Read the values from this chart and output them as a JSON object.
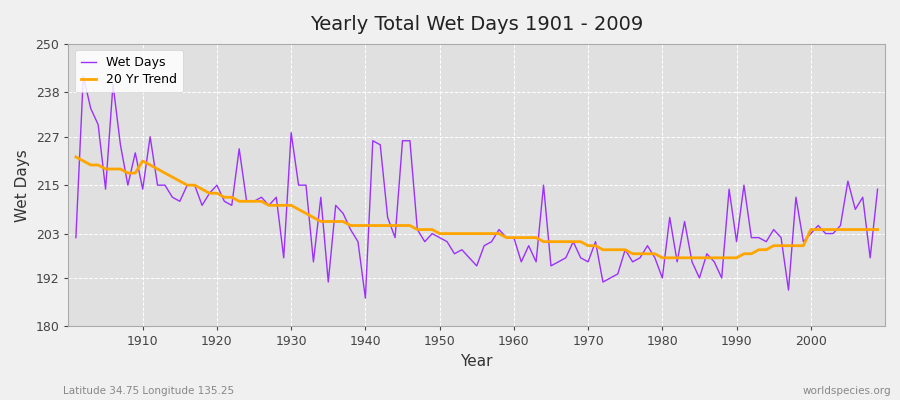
{
  "title": "Yearly Total Wet Days 1901 - 2009",
  "xlabel": "Year",
  "ylabel": "Wet Days",
  "subtitle_left": "Latitude 34.75 Longitude 135.25",
  "subtitle_right": "worldspecies.org",
  "legend_wet": "Wet Days",
  "legend_trend": "20 Yr Trend",
  "wet_color": "#9B30FF",
  "trend_color": "#FFA500",
  "bg_color": "#F0F0F0",
  "plot_bg_color": "#E0E0E0",
  "ylim": [
    180,
    250
  ],
  "yticks": [
    180,
    192,
    203,
    215,
    227,
    238,
    250
  ],
  "xticks": [
    1910,
    1920,
    1930,
    1940,
    1950,
    1960,
    1970,
    1980,
    1990,
    2000
  ],
  "years": [
    1901,
    1902,
    1903,
    1904,
    1905,
    1906,
    1907,
    1908,
    1909,
    1910,
    1911,
    1912,
    1913,
    1914,
    1915,
    1916,
    1917,
    1918,
    1919,
    1920,
    1921,
    1922,
    1923,
    1924,
    1925,
    1926,
    1927,
    1928,
    1929,
    1930,
    1931,
    1932,
    1933,
    1934,
    1935,
    1936,
    1937,
    1938,
    1939,
    1940,
    1941,
    1942,
    1943,
    1944,
    1945,
    1946,
    1947,
    1948,
    1949,
    1950,
    1951,
    1952,
    1953,
    1954,
    1955,
    1956,
    1957,
    1958,
    1959,
    1960,
    1961,
    1962,
    1963,
    1964,
    1965,
    1966,
    1967,
    1968,
    1969,
    1970,
    1971,
    1972,
    1973,
    1974,
    1975,
    1976,
    1977,
    1978,
    1979,
    1980,
    1981,
    1982,
    1983,
    1984,
    1985,
    1986,
    1987,
    1988,
    1989,
    1990,
    1991,
    1992,
    1993,
    1994,
    1995,
    1996,
    1997,
    1998,
    1999,
    2000,
    2001,
    2002,
    2003,
    2004,
    2005,
    2006,
    2007,
    2008,
    2009
  ],
  "wet_days": [
    202,
    242,
    234,
    230,
    214,
    240,
    225,
    215,
    223,
    214,
    227,
    215,
    215,
    212,
    211,
    215,
    215,
    210,
    213,
    215,
    211,
    210,
    224,
    211,
    211,
    212,
    210,
    212,
    197,
    228,
    215,
    215,
    196,
    212,
    191,
    210,
    208,
    204,
    201,
    187,
    226,
    225,
    207,
    202,
    226,
    226,
    204,
    201,
    203,
    202,
    201,
    198,
    199,
    197,
    195,
    200,
    201,
    204,
    202,
    202,
    196,
    200,
    196,
    215,
    195,
    196,
    197,
    201,
    197,
    196,
    201,
    191,
    192,
    193,
    199,
    196,
    197,
    200,
    197,
    192,
    207,
    196,
    206,
    196,
    192,
    198,
    196,
    192,
    214,
    201,
    215,
    202,
    202,
    201,
    204,
    202,
    189,
    212,
    201,
    203,
    205,
    203,
    203,
    205,
    216,
    209,
    212,
    197,
    214
  ],
  "trend_values": [
    222,
    221,
    220,
    220,
    219,
    219,
    219,
    218,
    218,
    221,
    220,
    219,
    218,
    217,
    216,
    215,
    215,
    214,
    213,
    213,
    212,
    212,
    211,
    211,
    211,
    211,
    210,
    210,
    210,
    210,
    209,
    208,
    207,
    206,
    206,
    206,
    206,
    205,
    205,
    205,
    205,
    205,
    205,
    205,
    205,
    205,
    204,
    204,
    204,
    203,
    203,
    203,
    203,
    203,
    203,
    203,
    203,
    203,
    202,
    202,
    202,
    202,
    202,
    201,
    201,
    201,
    201,
    201,
    201,
    200,
    200,
    199,
    199,
    199,
    199,
    198,
    198,
    198,
    198,
    197,
    197,
    197,
    197,
    197,
    197,
    197,
    197,
    197,
    197,
    197,
    198,
    198,
    199,
    199,
    200,
    200,
    200,
    200,
    200,
    204,
    204,
    204,
    204,
    204,
    204,
    204,
    204,
    204,
    204
  ]
}
